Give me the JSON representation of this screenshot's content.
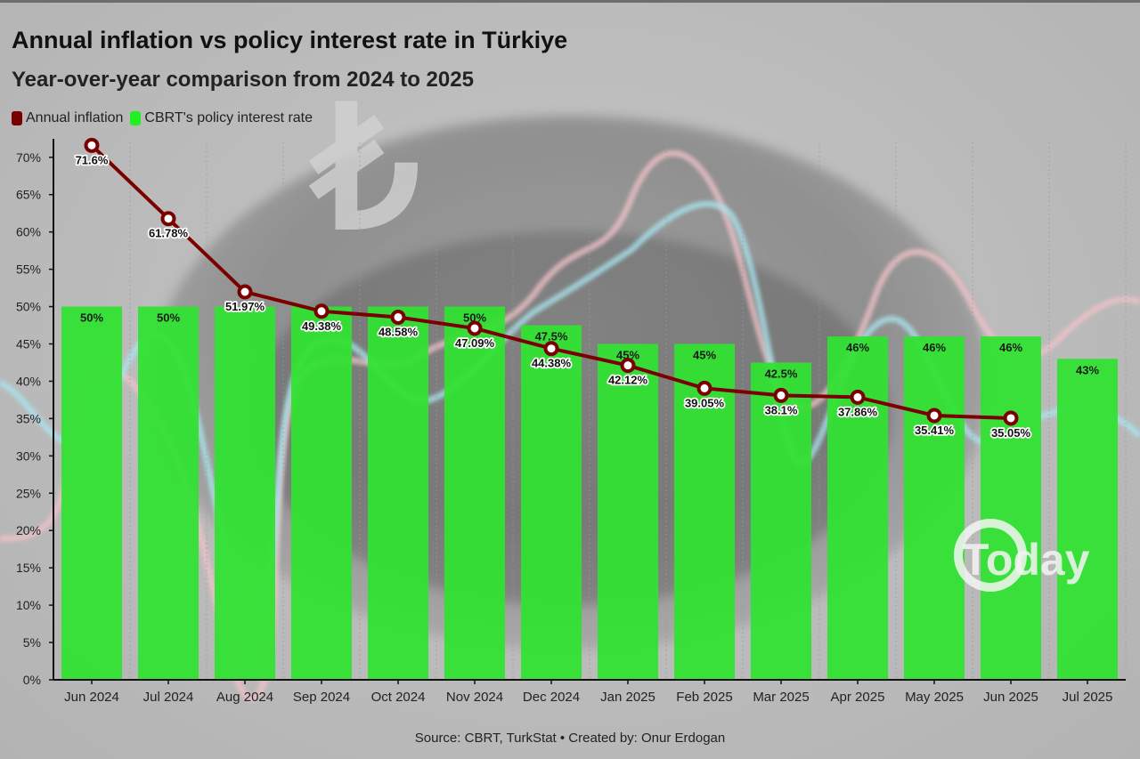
{
  "header": {
    "title": "Annual inflation vs policy interest rate in Türkiye",
    "subtitle": "Year-over-year comparison from 2024 to 2025"
  },
  "legend": {
    "inflation_label": "Annual inflation",
    "rate_label": "CBRT's policy interest rate"
  },
  "footer": {
    "source": "Source: CBRT, TurkStat • Created by: Onur Erdogan"
  },
  "watermark": {
    "text": "Today"
  },
  "colors": {
    "inflation": "#7a0000",
    "rate_bar": "#33e233",
    "rate_swatch": "#22ee22"
  },
  "chart_data": {
    "type": "bar",
    "categories": [
      "Jun 2024",
      "Jul 2024",
      "Aug 2024",
      "Sep 2024",
      "Oct 2024",
      "Nov 2024",
      "Dec 2024",
      "Jan 2025",
      "Feb 2025",
      "Mar 2025",
      "Apr 2025",
      "May 2025",
      "Jun 2025",
      "Jul 2025"
    ],
    "series": [
      {
        "name": "CBRT's policy interest rate",
        "type": "bar",
        "values": [
          50,
          50,
          50,
          50,
          50,
          50,
          47.5,
          45,
          45,
          42.5,
          46,
          46,
          46,
          43
        ],
        "labels": [
          "50%",
          "50%",
          "",
          "",
          "",
          "50%",
          "47.5%",
          "45%",
          "45%",
          "42.5%",
          "46%",
          "46%",
          "46%",
          "43%"
        ]
      },
      {
        "name": "Annual inflation",
        "type": "line",
        "values": [
          71.6,
          61.78,
          51.97,
          49.38,
          48.58,
          47.09,
          44.38,
          42.12,
          39.05,
          38.1,
          37.86,
          35.41,
          35.05,
          null
        ],
        "labels": [
          "71.6%",
          "61.78%",
          "51.97%",
          "49.38%",
          "48.58%",
          "47.09%",
          "44.38%",
          "42.12%",
          "39.05%",
          "38.1%",
          "37.86%",
          "35.41%",
          "35.05%",
          ""
        ]
      }
    ],
    "y_ticks": [
      "0%",
      "5%",
      "10%",
      "15%",
      "20%",
      "25%",
      "30%",
      "35%",
      "40%",
      "45%",
      "50%",
      "55%",
      "60%",
      "65%",
      "70%"
    ],
    "ylim": [
      0,
      72
    ],
    "grid": "vertical dashed",
    "legend_position": "top-left"
  }
}
